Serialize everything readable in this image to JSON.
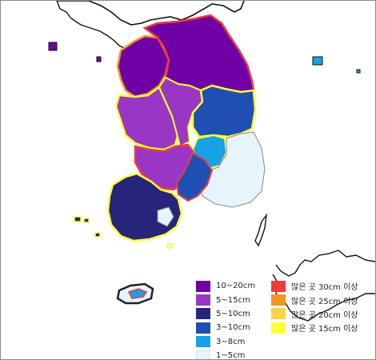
{
  "snow_legend": [
    {
      "label": "10~20cm",
      "color": "#6f00a6"
    },
    {
      "label": "5~15cm",
      "color": "#9a36c4"
    },
    {
      "label": "5~10cm",
      "color": "#27247c"
    },
    {
      "label": "3~10cm",
      "color": "#1f4fb2"
    },
    {
      "label": "3~8cm",
      "color": "#17a2e6"
    },
    {
      "label": "1~5cm",
      "color": "#e6f4fb"
    }
  ],
  "heavy_legend": [
    {
      "label": "많은 곳 30cm 이상",
      "color": "#ef3b3b"
    },
    {
      "label": "많은 곳 25cm 이상",
      "color": "#f7941d"
    },
    {
      "label": "많은 곳 20cm 이상",
      "color": "#f8d44a"
    },
    {
      "label": "많은 곳 15cm 이상",
      "color": "#ffff33"
    }
  ]
}
